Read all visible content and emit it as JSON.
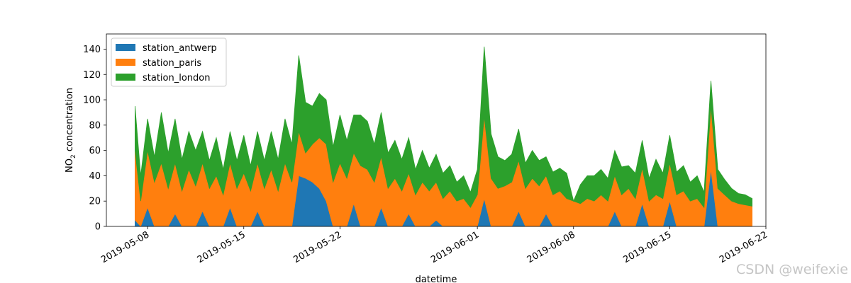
{
  "watermark": "CSDN @weifexie",
  "chart_data": {
    "type": "area",
    "stacked": true,
    "title": "",
    "xlabel": "datetime",
    "ylabel_prefix": "NO",
    "ylabel_sub": "2",
    "ylabel_suffix": " concentration",
    "xlim": [
      "2019-05-05",
      "2019-06-22"
    ],
    "ylim": [
      0,
      152
    ],
    "yticks": [
      0,
      20,
      40,
      60,
      80,
      100,
      120,
      140
    ],
    "xticks": [
      "2019-05-08",
      "2019-05-15",
      "2019-05-22",
      "2019-06-01",
      "2019-06-08",
      "2019-06-15",
      "2019-06-22"
    ],
    "legend_position": "top-left",
    "grid": false,
    "x": [
      "2019-05-07T02:00",
      "2019-05-07T12:00",
      "2019-05-08T00:00",
      "2019-05-08T12:00",
      "2019-05-09T00:00",
      "2019-05-09T12:00",
      "2019-05-10T00:00",
      "2019-05-10T12:00",
      "2019-05-11T00:00",
      "2019-05-11T12:00",
      "2019-05-12T00:00",
      "2019-05-12T12:00",
      "2019-05-13T00:00",
      "2019-05-13T12:00",
      "2019-05-14T00:00",
      "2019-05-14T12:00",
      "2019-05-15T00:00",
      "2019-05-15T12:00",
      "2019-05-16T00:00",
      "2019-05-16T12:00",
      "2019-05-17T00:00",
      "2019-05-17T12:00",
      "2019-05-18T00:00",
      "2019-05-18T12:00",
      "2019-05-19T00:00",
      "2019-05-19T12:00",
      "2019-05-20T00:00",
      "2019-05-20T12:00",
      "2019-05-21T00:00",
      "2019-05-21T12:00",
      "2019-05-22T00:00",
      "2019-05-22T12:00",
      "2019-05-23T00:00",
      "2019-05-23T12:00",
      "2019-05-24T00:00",
      "2019-05-24T12:00",
      "2019-05-25T00:00",
      "2019-05-25T12:00",
      "2019-05-26T00:00",
      "2019-05-26T12:00",
      "2019-05-27T00:00",
      "2019-05-27T12:00",
      "2019-05-28T00:00",
      "2019-05-28T12:00",
      "2019-05-29T00:00",
      "2019-05-29T12:00",
      "2019-05-30T00:00",
      "2019-05-30T12:00",
      "2019-05-31T00:00",
      "2019-05-31T12:00",
      "2019-06-01T00:00",
      "2019-06-01T12:00",
      "2019-06-02T00:00",
      "2019-06-02T12:00",
      "2019-06-03T00:00",
      "2019-06-03T12:00",
      "2019-06-04T00:00",
      "2019-06-04T12:00",
      "2019-06-05T00:00",
      "2019-06-05T12:00",
      "2019-06-06T00:00",
      "2019-06-06T12:00",
      "2019-06-07T00:00",
      "2019-06-07T12:00",
      "2019-06-08T00:00",
      "2019-06-08T12:00",
      "2019-06-09T00:00",
      "2019-06-09T12:00",
      "2019-06-10T00:00",
      "2019-06-10T12:00",
      "2019-06-11T00:00",
      "2019-06-11T12:00",
      "2019-06-12T00:00",
      "2019-06-12T12:00",
      "2019-06-13T00:00",
      "2019-06-13T12:00",
      "2019-06-14T00:00",
      "2019-06-14T12:00",
      "2019-06-15T00:00",
      "2019-06-15T12:00",
      "2019-06-16T00:00",
      "2019-06-16T12:00",
      "2019-06-17T00:00",
      "2019-06-17T12:00",
      "2019-06-18T00:00",
      "2019-06-18T12:00",
      "2019-06-19T00:00",
      "2019-06-19T12:00",
      "2019-06-20T00:00",
      "2019-06-20T12:00",
      "2019-06-21T00:00"
    ],
    "series": [
      {
        "name": "station_antwerp",
        "color": "#1f77b4",
        "values": [
          5,
          0,
          15,
          0,
          0,
          0,
          10,
          0,
          0,
          0,
          12,
          0,
          0,
          0,
          15,
          0,
          0,
          0,
          12,
          0,
          0,
          0,
          0,
          0,
          40,
          38,
          35,
          30,
          20,
          0,
          0,
          0,
          18,
          0,
          0,
          0,
          15,
          0,
          0,
          0,
          10,
          0,
          0,
          0,
          5,
          0,
          0,
          0,
          0,
          0,
          0,
          22,
          0,
          0,
          0,
          0,
          12,
          0,
          0,
          0,
          10,
          0,
          0,
          0,
          0,
          0,
          0,
          0,
          0,
          0,
          12,
          0,
          0,
          0,
          18,
          0,
          0,
          0,
          20,
          0,
          0,
          0,
          0,
          0,
          45,
          0,
          0,
          0,
          0,
          0,
          0
        ]
      },
      {
        "name": "station_paris",
        "color": "#ff7f0e",
        "values": [
          55,
          20,
          45,
          35,
          50,
          30,
          40,
          28,
          45,
          32,
          38,
          30,
          40,
          25,
          35,
          30,
          42,
          28,
          38,
          30,
          45,
          28,
          50,
          35,
          35,
          20,
          30,
          40,
          45,
          35,
          50,
          38,
          40,
          48,
          45,
          35,
          40,
          30,
          38,
          28,
          32,
          25,
          35,
          28,
          30,
          22,
          28,
          20,
          22,
          15,
          25,
          65,
          38,
          30,
          32,
          35,
          40,
          30,
          38,
          32,
          30,
          25,
          28,
          22,
          20,
          18,
          22,
          20,
          25,
          20,
          28,
          25,
          30,
          22,
          28,
          20,
          25,
          22,
          30,
          25,
          28,
          20,
          22,
          15,
          50,
          30,
          25,
          20,
          18,
          17,
          16
        ]
      },
      {
        "name": "station_london",
        "color": "#2ca02c",
        "values": [
          35,
          20,
          25,
          20,
          40,
          28,
          35,
          25,
          30,
          28,
          25,
          22,
          30,
          20,
          25,
          22,
          30,
          20,
          25,
          22,
          30,
          25,
          35,
          30,
          60,
          40,
          30,
          35,
          35,
          28,
          38,
          30,
          30,
          40,
          38,
          30,
          35,
          28,
          30,
          25,
          28,
          20,
          25,
          18,
          22,
          20,
          20,
          15,
          18,
          12,
          20,
          55,
          35,
          25,
          20,
          22,
          25,
          20,
          22,
          20,
          15,
          18,
          18,
          20,
          0,
          15,
          18,
          20,
          20,
          18,
          20,
          22,
          18,
          20,
          22,
          18,
          28,
          20,
          22,
          18,
          20,
          15,
          18,
          12,
          20,
          15,
          12,
          10,
          8,
          8,
          6
        ]
      }
    ]
  }
}
